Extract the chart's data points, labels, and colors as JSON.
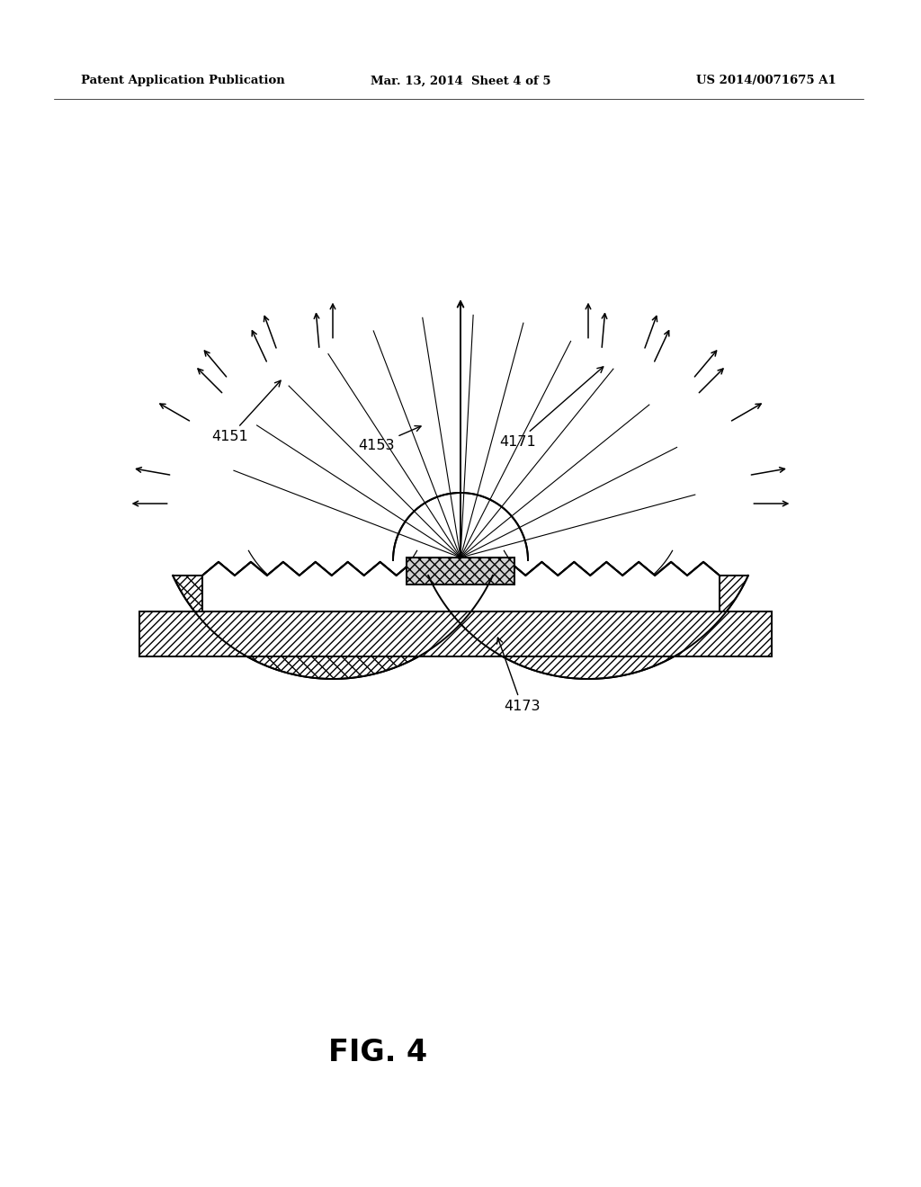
{
  "background_color": "#ffffff",
  "header_left": "Patent Application Publication",
  "header_center": "Mar. 13, 2014  Sheet 4 of 5",
  "header_right": "US 2014/0071675 A1",
  "figure_label": "FIG. 4",
  "lc": "#000000",
  "lw": 1.4,
  "fig_w": 10.24,
  "fig_h": 13.2,
  "dpi": 100
}
